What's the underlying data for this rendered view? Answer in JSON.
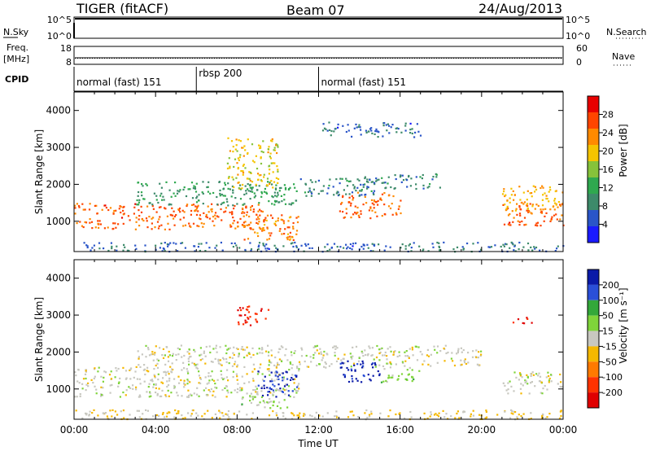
{
  "header": {
    "radar": "TIGER (fitACF)",
    "beam": "Beam 07",
    "date": "24/Aug/2013"
  },
  "top_panels": {
    "nsky_label": "N.Sky",
    "nsky_ticks": [
      "10^5",
      "10^0"
    ],
    "nsearch_label": "N.Search",
    "nsearch_ticks": [
      "10^5",
      "10^0"
    ],
    "freq_label": [
      "Freq.",
      "[MHz]"
    ],
    "freq_ticks": [
      "18",
      "8"
    ],
    "freq_value_mhz": 11.5,
    "nave_label": "Nave",
    "nave_ticks": [
      "60",
      "0"
    ],
    "nave_value": 20
  },
  "cpid": {
    "label": "CPID",
    "segments": [
      {
        "name": "normal (fast) 151",
        "start_h": 0,
        "end_h": 6
      },
      {
        "name": "rbsp 200",
        "start_h": 6,
        "end_h": 12
      },
      {
        "name": "normal (fast) 151",
        "start_h": 12,
        "end_h": 24
      }
    ]
  },
  "colors": {
    "power": [
      "#1a1aff",
      "#2a55c8",
      "#3d8a6a",
      "#2fa84f",
      "#86c23a",
      "#f5c400",
      "#ff8a00",
      "#ff4500",
      "#e80000"
    ],
    "velocity": [
      "#e00000",
      "#ff3300",
      "#ff7a00",
      "#f5b800",
      "#c8c8c0",
      "#7fd43a",
      "#33a83a",
      "#2a4fd8",
      "#0a1aa8"
    ]
  },
  "chart_data": [
    {
      "type": "heatmap",
      "name": "power",
      "ylabel": "Slant Range [km]",
      "xlabel": "Time UT",
      "xlim_h": [
        0,
        24
      ],
      "ylim_km": [
        180,
        4500
      ],
      "y_ticks": [
        1000,
        2000,
        3000,
        4000
      ],
      "x_tick_labels": [
        "00:00",
        "04:00",
        "08:00",
        "12:00",
        "16:00",
        "20:00",
        "00:00"
      ],
      "colorbar": {
        "label": "Power [dB]",
        "ticks": [
          "28",
          "24",
          "20",
          "16",
          "12",
          "8",
          "4"
        ],
        "range": [
          0,
          30
        ]
      },
      "regions": [
        {
          "t": [
            0,
            9.5
          ],
          "r": [
            800,
            1500
          ],
          "value": 24
        },
        {
          "t": [
            3,
            11
          ],
          "r": [
            1450,
            2100
          ],
          "value": 10
        },
        {
          "t": [
            7.5,
            10
          ],
          "r": [
            1900,
            3300
          ],
          "value": 18
        },
        {
          "t": [
            8,
            11
          ],
          "r": [
            500,
            1200
          ],
          "value": 22
        },
        {
          "t": [
            11,
            15
          ],
          "r": [
            1700,
            2200
          ],
          "value": 8
        },
        {
          "t": [
            13,
            16
          ],
          "r": [
            1100,
            1800
          ],
          "value": 24
        },
        {
          "t": [
            12,
            17
          ],
          "r": [
            3300,
            3700
          ],
          "value": 6
        },
        {
          "t": [
            14,
            18
          ],
          "r": [
            1900,
            2300
          ],
          "value": 8
        },
        {
          "t": [
            21,
            24
          ],
          "r": [
            900,
            1500
          ],
          "value": 24
        },
        {
          "t": [
            21,
            24
          ],
          "r": [
            1300,
            2000
          ],
          "value": 20
        },
        {
          "t": [
            0,
            24
          ],
          "r": [
            200,
            450
          ],
          "value": 6
        }
      ]
    },
    {
      "type": "heatmap",
      "name": "velocity",
      "ylabel": "Slant Range [km]",
      "xlabel": "Time UT",
      "xlim_h": [
        0,
        24
      ],
      "ylim_km": [
        180,
        4500
      ],
      "y_ticks": [
        1000,
        2000,
        3000,
        4000
      ],
      "x_tick_labels": [
        "00:00",
        "04:00",
        "08:00",
        "12:00",
        "16:00",
        "20:00",
        "00:00"
      ],
      "colorbar": {
        "label": "Velocity [m s⁻¹]",
        "ticks": [
          "200",
          "100",
          "50",
          "15",
          "-15",
          "-50",
          "-100",
          "-200"
        ],
        "range": [
          -250,
          250
        ]
      },
      "regions": [
        {
          "t": [
            0,
            11
          ],
          "r": [
            800,
            1600
          ],
          "value": 0
        },
        {
          "t": [
            3,
            20
          ],
          "r": [
            1600,
            2200
          ],
          "value": 0
        },
        {
          "t": [
            8,
            9.5
          ],
          "r": [
            2700,
            3300
          ],
          "value": -200
        },
        {
          "t": [
            9,
            11
          ],
          "r": [
            800,
            1500
          ],
          "value": 200
        },
        {
          "t": [
            8,
            10.5
          ],
          "r": [
            500,
            900
          ],
          "value": 40
        },
        {
          "t": [
            13,
            15
          ],
          "r": [
            1200,
            1800
          ],
          "value": 220
        },
        {
          "t": [
            15,
            17
          ],
          "r": [
            1200,
            1600
          ],
          "value": 60
        },
        {
          "t": [
            21,
            24
          ],
          "r": [
            900,
            1500
          ],
          "value": 0
        },
        {
          "t": [
            21.5,
            22.5
          ],
          "r": [
            2800,
            3000
          ],
          "value": -200
        },
        {
          "t": [
            0,
            24
          ],
          "r": [
            200,
            450
          ],
          "value": -30
        }
      ]
    }
  ]
}
